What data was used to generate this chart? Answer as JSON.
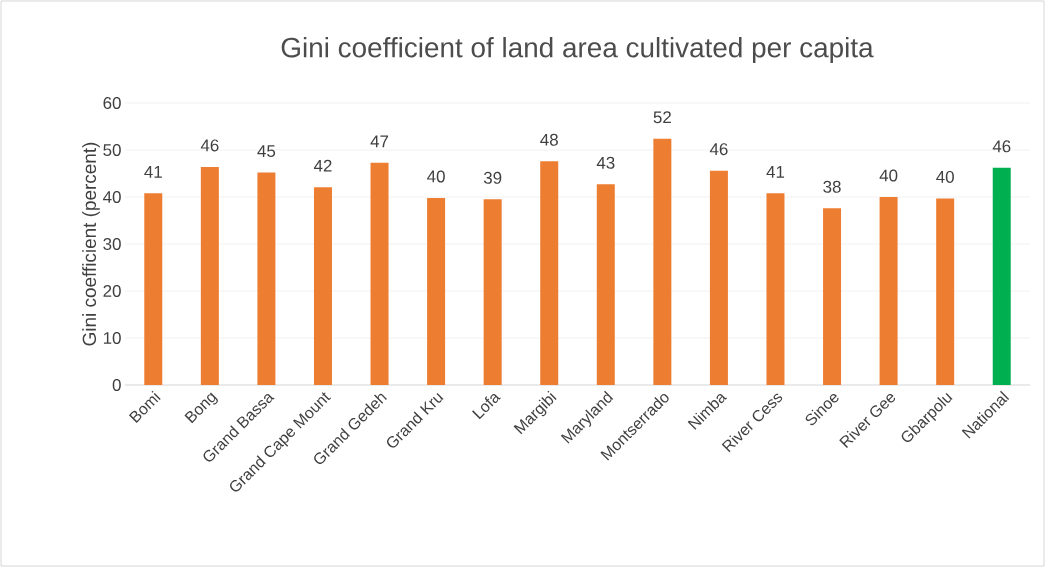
{
  "chart_data": {
    "type": "bar",
    "title": "Gini coefficient of land area cultivated per capita",
    "ylabel": "Gini coefficient (percent)",
    "categories": [
      "Bomi",
      "Bong",
      "Grand Bassa",
      "Grand Cape Mount",
      "Grand Gedeh",
      "Grand Kru",
      "Lofa",
      "Margibi",
      "Maryland",
      "Montserrado",
      "Nimba",
      "River Cess",
      "Sinoe",
      "River Gee",
      "Gbarpolu",
      "National"
    ],
    "values": [
      40.8,
      46.4,
      45.2,
      42.1,
      47.3,
      39.8,
      39.5,
      47.6,
      42.7,
      52.4,
      45.6,
      40.8,
      37.6,
      40.0,
      39.7,
      46.2
    ],
    "value_labels": [
      "41",
      "46",
      "45",
      "42",
      "47",
      "40",
      "39",
      "48",
      "43",
      "52",
      "46",
      "41",
      "38",
      "40",
      "40",
      "46"
    ],
    "colors": [
      "#ed7d31",
      "#ed7d31",
      "#ed7d31",
      "#ed7d31",
      "#ed7d31",
      "#ed7d31",
      "#ed7d31",
      "#ed7d31",
      "#ed7d31",
      "#ed7d31",
      "#ed7d31",
      "#ed7d31",
      "#ed7d31",
      "#ed7d31",
      "#ed7d31",
      "#00b050"
    ],
    "ylim": [
      0,
      60
    ],
    "yticks": [
      0,
      10,
      20,
      30,
      40,
      50,
      60
    ],
    "grid": "y"
  }
}
